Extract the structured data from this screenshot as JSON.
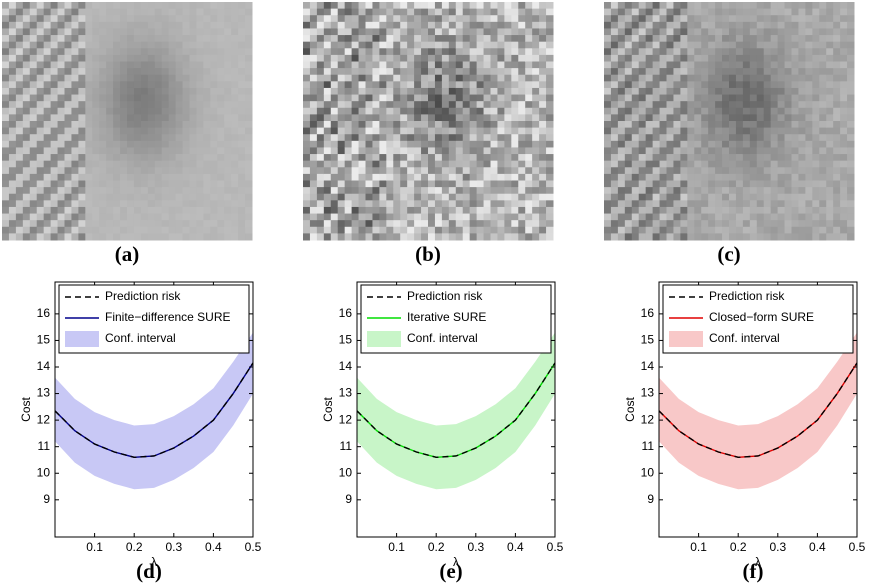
{
  "images": [
    {
      "caption": "(a)"
    },
    {
      "caption": "(b)"
    },
    {
      "caption": "(c)"
    }
  ],
  "chart_data": [
    {
      "type": "line",
      "caption": "(d)",
      "xlabel": "λ",
      "ylabel": "Cost",
      "x": [
        0,
        0.05,
        0.1,
        0.15,
        0.2,
        0.25,
        0.3,
        0.35,
        0.4,
        0.45,
        0.5
      ],
      "xlim": [
        0,
        0.5
      ],
      "xticks": [
        0.1,
        0.2,
        0.3,
        0.4,
        0.5
      ],
      "ylim": [
        7.6,
        17.2
      ],
      "yticks": [
        9,
        10,
        11,
        12,
        13,
        14,
        15,
        16
      ],
      "legend": "upper right",
      "series": [
        {
          "name": "Prediction risk",
          "color": "#000000",
          "dash": true,
          "values": [
            12.35,
            11.6,
            11.1,
            10.8,
            10.6,
            10.65,
            10.95,
            11.4,
            12.0,
            13.0,
            14.15
          ]
        },
        {
          "name": "Finite−difference SURE",
          "color": "#00008b",
          "values": [
            12.35,
            11.6,
            11.1,
            10.8,
            10.6,
            10.65,
            10.95,
            11.4,
            12.0,
            13.0,
            14.15
          ]
        },
        {
          "name": "Conf. interval",
          "color": "#c8c8f5",
          "upper": [
            13.6,
            12.8,
            12.3,
            12.0,
            11.8,
            11.85,
            12.15,
            12.6,
            13.2,
            14.2,
            15.3
          ],
          "lower": [
            11.2,
            10.4,
            9.9,
            9.6,
            9.4,
            9.45,
            9.75,
            10.2,
            10.8,
            11.8,
            13.0
          ]
        }
      ]
    },
    {
      "type": "line",
      "caption": "(e)",
      "xlabel": "λ",
      "ylabel": "Cost",
      "x": [
        0,
        0.05,
        0.1,
        0.15,
        0.2,
        0.25,
        0.3,
        0.35,
        0.4,
        0.45,
        0.5
      ],
      "xlim": [
        0,
        0.5
      ],
      "xticks": [
        0.1,
        0.2,
        0.3,
        0.4,
        0.5
      ],
      "ylim": [
        7.6,
        17.2
      ],
      "yticks": [
        9,
        10,
        11,
        12,
        13,
        14,
        15,
        16
      ],
      "legend": "upper right",
      "series": [
        {
          "name": "Prediction risk",
          "color": "#000000",
          "dash": true,
          "values": [
            12.35,
            11.6,
            11.1,
            10.8,
            10.6,
            10.65,
            10.95,
            11.4,
            12.0,
            13.0,
            14.15
          ]
        },
        {
          "name": "Iterative SURE",
          "color": "#00dd00",
          "values": [
            12.35,
            11.6,
            11.1,
            10.8,
            10.6,
            10.65,
            10.95,
            11.4,
            12.0,
            13.0,
            14.15
          ]
        },
        {
          "name": "Conf. interval",
          "color": "#c8f5c8",
          "upper": [
            13.6,
            12.8,
            12.3,
            12.0,
            11.8,
            11.85,
            12.15,
            12.6,
            13.2,
            14.2,
            15.3
          ],
          "lower": [
            11.2,
            10.4,
            9.9,
            9.6,
            9.4,
            9.45,
            9.75,
            10.2,
            10.8,
            11.8,
            13.0
          ]
        }
      ]
    },
    {
      "type": "line",
      "caption": "(f)",
      "xlabel": "λ",
      "ylabel": "Cost",
      "x": [
        0,
        0.05,
        0.1,
        0.15,
        0.2,
        0.25,
        0.3,
        0.35,
        0.4,
        0.45,
        0.5
      ],
      "xlim": [
        0,
        0.5
      ],
      "xticks": [
        0.1,
        0.2,
        0.3,
        0.4,
        0.5
      ],
      "ylim": [
        7.6,
        17.2
      ],
      "yticks": [
        9,
        10,
        11,
        12,
        13,
        14,
        15,
        16
      ],
      "legend": "upper right",
      "series": [
        {
          "name": "Prediction risk",
          "color": "#000000",
          "dash": true,
          "values": [
            12.35,
            11.6,
            11.1,
            10.8,
            10.6,
            10.65,
            10.95,
            11.4,
            12.0,
            13.0,
            14.15
          ]
        },
        {
          "name": "Closed−form SURE",
          "color": "#e00000",
          "values": [
            12.35,
            11.6,
            11.1,
            10.8,
            10.6,
            10.65,
            10.95,
            11.4,
            12.0,
            13.0,
            14.15
          ]
        },
        {
          "name": "Conf. interval",
          "color": "#f8c8c8",
          "upper": [
            13.6,
            12.8,
            12.3,
            12.0,
            11.8,
            11.85,
            12.15,
            12.6,
            13.2,
            14.2,
            15.3
          ],
          "lower": [
            11.2,
            10.4,
            9.9,
            9.6,
            9.4,
            9.45,
            9.75,
            10.2,
            10.8,
            11.8,
            13.0
          ]
        }
      ]
    }
  ]
}
